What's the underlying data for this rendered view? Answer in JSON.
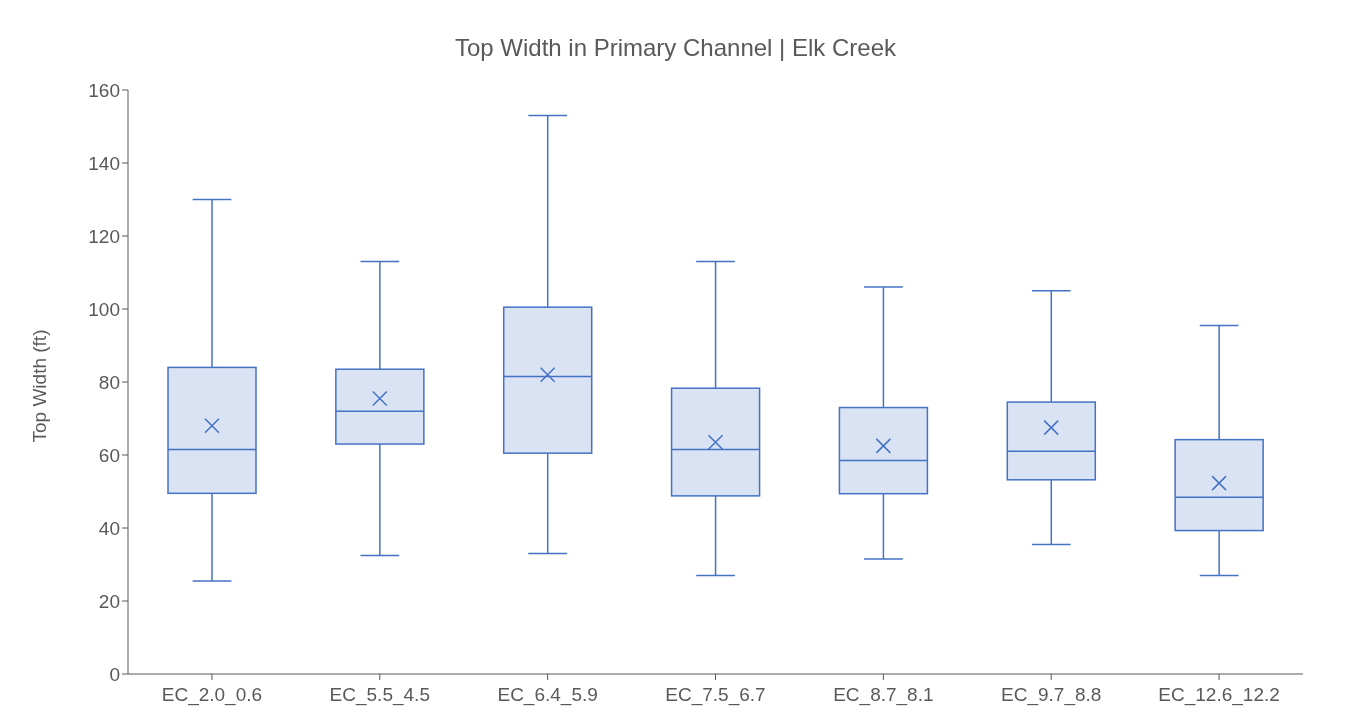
{
  "chart_data": {
    "type": "box",
    "title": "Top Width in Primary Channel | Elk Creek",
    "ylabel": "Top Width (ft)",
    "categories": [
      "EC_2.0_0.6",
      "EC_5.5_4.5",
      "EC_6.4_5.9",
      "EC_7.5_6.7",
      "EC_8.7_8.1",
      "EC_9.7_8.8",
      "EC_12.6_12.2"
    ],
    "color": "#4472c4",
    "boxes": [
      {
        "low": 25.5,
        "q1": 49.5,
        "median": 61.5,
        "q3": 84,
        "high": 130,
        "mean": 68
      },
      {
        "low": 32.5,
        "q1": 63,
        "median": 72,
        "q3": 83.5,
        "high": 113,
        "mean": 75.5
      },
      {
        "low": 33,
        "q1": 60.5,
        "median": 81.5,
        "q3": 100.5,
        "high": 153,
        "mean": 82
      },
      {
        "low": 27,
        "q1": 48.8,
        "median": 61.5,
        "q3": 78.3,
        "high": 113,
        "mean": 63.5
      },
      {
        "low": 31.5,
        "q1": 49.4,
        "median": 58.5,
        "q3": 73,
        "high": 106,
        "mean": 62.5
      },
      {
        "low": 35.5,
        "q1": 53.2,
        "median": 61,
        "q3": 74.5,
        "high": 105,
        "mean": 67.5
      },
      {
        "low": 27,
        "q1": 39.3,
        "median": 48.4,
        "q3": 64.2,
        "high": 95.5,
        "mean": 52.3
      }
    ],
    "ylim": [
      0,
      160
    ],
    "yticks": [
      0,
      20,
      40,
      60,
      80,
      100,
      120,
      140,
      160
    ],
    "marker": "cross"
  }
}
